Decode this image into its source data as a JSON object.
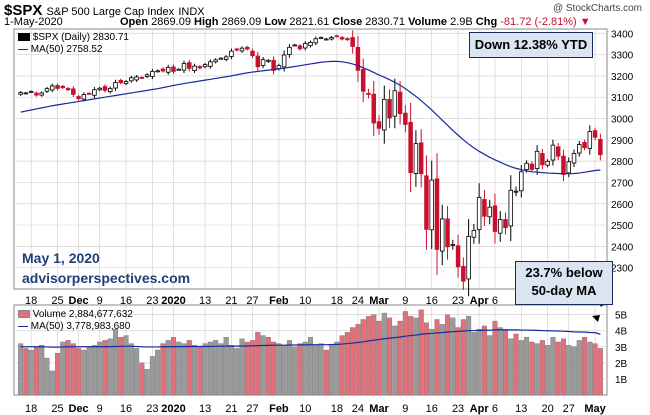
{
  "header": {
    "symbol": "$SPX",
    "name": "S&P 500 Large Cap Index",
    "exchange": "INDX",
    "date": "1-May-2020",
    "open_label": "Open",
    "open": "2869.09",
    "high_label": "High",
    "high": "2869.09",
    "low_label": "Low",
    "low": "2821.61",
    "close_label": "Close",
    "close": "2830.71",
    "volume_label": "Volume",
    "volume": "2.9B",
    "chg_label": "Chg",
    "chg": "-81.72 (-2.81%)",
    "brand": "@ StockCharts.com"
  },
  "legend": {
    "price": "$SPX (Daily) 2830.71",
    "ma": "MA(50) 2758.52",
    "volume": "Volume 2,884,677,632",
    "vol_ma": "MA(50) 3,778,983,680"
  },
  "annotations": {
    "ytd": "Down 12.38% YTD",
    "below_line1": "23.7% below",
    "below_line2": "50-day MA",
    "date": "May 1, 2020",
    "site": "advisorperspectives.com"
  },
  "colors": {
    "up": "#000000",
    "down": "#c8102e",
    "ma": "#1a2a9a",
    "vol_up": "#9a9a9a",
    "vol_down": "#e0707a",
    "grid": "#d4d4d4"
  },
  "chart_data": [
    {
      "type": "candlestick",
      "title": "$SPX S&P 500 Large Cap Index",
      "y_ticks": [
        2300,
        2400,
        2500,
        2600,
        2700,
        2800,
        2900,
        3000,
        3100,
        3200,
        3300,
        3400
      ],
      "ylim": [
        2200,
        3420
      ],
      "x_ticks": [
        "18",
        "25",
        "Dec",
        "9",
        "16",
        "23",
        "2020",
        "13",
        "21",
        "27",
        "Feb",
        "10",
        "18",
        "24",
        "Mar",
        "9",
        "16",
        "23",
        "Apr",
        "6",
        "13",
        "20",
        "27",
        "May"
      ],
      "series": [
        {
          "name": "$SPX (Daily)",
          "close": [
            3122,
            3120,
            3127,
            3110,
            3120,
            3140,
            3153,
            3141,
            3145,
            3135,
            3113,
            3093,
            3112,
            3117,
            3135,
            3142,
            3132,
            3141,
            3169,
            3168,
            3173,
            3191,
            3195,
            3191,
            3205,
            3221,
            3224,
            3223,
            3240,
            3221,
            3231,
            3258,
            3235,
            3246,
            3237,
            3253,
            3266,
            3275,
            3283,
            3289,
            3316,
            3321,
            3330,
            3326,
            3295,
            3243,
            3276,
            3273,
            3226,
            3248,
            3298,
            3334,
            3345,
            3327,
            3352,
            3357,
            3374,
            3380,
            3373,
            3380,
            3386,
            3373,
            3370,
            3338,
            3226,
            3128,
            3116,
            2979,
            2954,
            3090,
            3003,
            3130,
            3023,
            2972,
            2746,
            2882,
            2741,
            2480,
            2711,
            2386,
            2529,
            2398,
            2409,
            2304,
            2237,
            2447,
            2475,
            2630,
            2541,
            2584,
            2470,
            2526,
            2488,
            2663,
            2659,
            2750,
            2790,
            2761,
            2846,
            2783,
            2799,
            2875,
            2823,
            2737,
            2797,
            2836,
            2878,
            2863,
            2939,
            2912,
            2830
          ]
        },
        {
          "name": "MA(50)",
          "values": [
            3030,
            3035,
            3040,
            3045,
            3050,
            3055,
            3060,
            3064,
            3068,
            3072,
            3076,
            3080,
            3084,
            3088,
            3092,
            3096,
            3100,
            3104,
            3108,
            3112,
            3116,
            3120,
            3124,
            3128,
            3132,
            3136,
            3140,
            3145,
            3150,
            3155,
            3160,
            3164,
            3168,
            3172,
            3176,
            3180,
            3184,
            3188,
            3192,
            3196,
            3200,
            3205,
            3210,
            3214,
            3218,
            3221,
            3224,
            3227,
            3230,
            3233,
            3236,
            3240,
            3244,
            3248,
            3252,
            3256,
            3260,
            3264,
            3266,
            3268,
            3268,
            3266,
            3262,
            3256,
            3248,
            3238,
            3228,
            3216,
            3204,
            3194,
            3182,
            3170,
            3156,
            3140,
            3122,
            3104,
            3084,
            3062,
            3040,
            3016,
            2992,
            2968,
            2944,
            2922,
            2900,
            2880,
            2862,
            2846,
            2832,
            2818,
            2806,
            2795,
            2784,
            2774,
            2766,
            2760,
            2754,
            2750,
            2748,
            2746,
            2744,
            2743,
            2742,
            2741,
            2741,
            2742,
            2744,
            2748,
            2752,
            2756,
            2758.52
          ]
        }
      ]
    },
    {
      "type": "bar",
      "title": "Volume",
      "y_ticks": [
        "1B",
        "2B",
        "3B",
        "4B",
        "5B"
      ],
      "ylim": [
        0,
        5.6
      ],
      "series": [
        {
          "name": "Volume",
          "values": [
            3.2,
            2.9,
            2.8,
            3.0,
            3.1,
            2.3,
            1.5,
            2.6,
            3.3,
            3.4,
            3.2,
            2.9,
            2.8,
            3.0,
            3.1,
            3.3,
            3.4,
            3.5,
            4.1,
            3.6,
            3.7,
            3.2,
            2.9,
            2.0,
            1.6,
            2.4,
            2.8,
            3.2,
            3.4,
            3.6,
            3.3,
            3.2,
            3.4,
            3.1,
            3.0,
            3.2,
            3.3,
            3.4,
            3.2,
            3.6,
            3.1,
            2.9,
            3.5,
            3.3,
            3.4,
            3.9,
            3.7,
            3.6,
            3.3,
            3.2,
            3.1,
            3.4,
            3.0,
            3.2,
            3.3,
            3.6,
            3.1,
            3.2,
            2.8,
            3.1,
            3.3,
            3.7,
            3.9,
            4.2,
            4.4,
            4.7,
            4.9,
            5.0,
            4.6,
            5.1,
            4.8,
            4.3,
            4.6,
            5.2,
            4.9,
            4.8,
            5.3,
            4.5,
            4.1,
            4.7,
            4.4,
            5.0,
            4.8,
            4.2,
            4.7,
            4.9,
            3.9,
            4.1,
            4.3,
            3.7,
            4.6,
            4.2,
            4.0,
            3.5,
            3.8,
            3.4,
            3.6,
            3.3,
            3.2,
            3.4,
            3.1,
            3.6,
            3.3,
            3.5,
            3.1,
            3.0,
            3.4,
            3.6,
            3.3,
            3.2,
            2.9
          ]
        },
        {
          "name": "MA(50)",
          "values": [
            3.0,
            3.0,
            3.0,
            3.0,
            3.0,
            2.99,
            2.98,
            2.98,
            2.99,
            3.0,
            3.0,
            3.0,
            3.0,
            3.0,
            3.0,
            3.0,
            3.0,
            3.01,
            3.02,
            3.03,
            3.03,
            3.03,
            3.02,
            3.0,
            2.99,
            2.99,
            2.99,
            3.0,
            3.0,
            3.01,
            3.01,
            3.01,
            3.02,
            3.02,
            3.02,
            3.02,
            3.02,
            3.03,
            3.03,
            3.04,
            3.04,
            3.04,
            3.05,
            3.05,
            3.06,
            3.07,
            3.08,
            3.09,
            3.1,
            3.1,
            3.1,
            3.11,
            3.11,
            3.12,
            3.12,
            3.13,
            3.13,
            3.13,
            3.13,
            3.14,
            3.15,
            3.17,
            3.2,
            3.23,
            3.27,
            3.31,
            3.36,
            3.41,
            3.45,
            3.5,
            3.54,
            3.57,
            3.61,
            3.66,
            3.7,
            3.73,
            3.78,
            3.81,
            3.83,
            3.86,
            3.88,
            3.92,
            3.94,
            3.96,
            3.98,
            4.01,
            4.01,
            4.02,
            4.03,
            4.03,
            4.05,
            4.05,
            4.06,
            4.05,
            4.05,
            4.04,
            4.04,
            4.03,
            4.02,
            4.01,
            4.0,
            3.99,
            3.98,
            3.97,
            3.95,
            3.93,
            3.92,
            3.91,
            3.89,
            3.88,
            3.78
          ]
        }
      ]
    }
  ]
}
